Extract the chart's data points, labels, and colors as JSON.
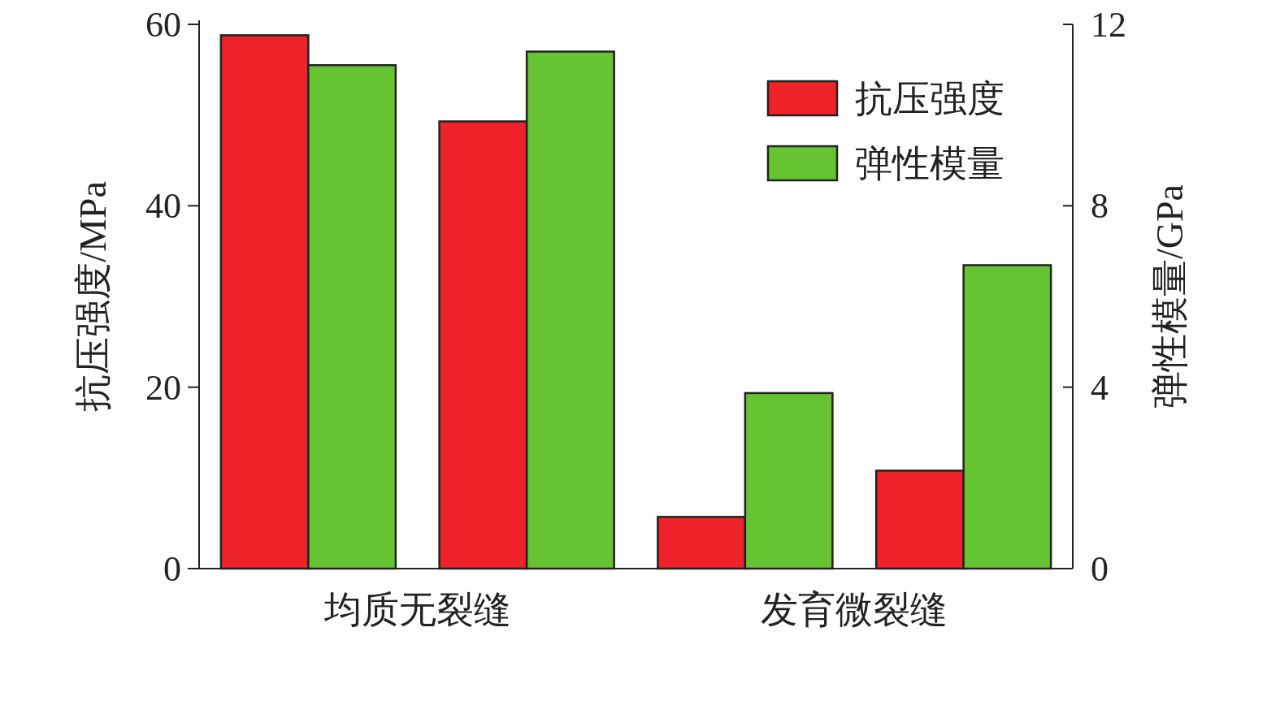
{
  "chart_data": {
    "type": "bar",
    "categories": [
      "均质无裂缝",
      "发育微裂缝"
    ],
    "series": [
      {
        "name": "抗压强度",
        "color": "#ee2329",
        "values": [
          58.8,
          5.7
        ]
      },
      {
        "name": "弹性模量",
        "color": "#66c332",
        "axis": "y2",
        "values": [
          11.1,
          3.87
        ]
      },
      {
        "color": "#ee2329",
        "values": [
          49.3,
          10.8
        ]
      },
      {
        "color": "#66c332",
        "axis": "y2",
        "values": [
          11.4,
          6.69
        ]
      }
    ],
    "ylabel": "抗压强度/MPa",
    "y2label": "弹性模量/GPa",
    "ylim": [
      0,
      60
    ],
    "yticks": [
      0,
      20,
      40,
      60
    ],
    "y2lim": [
      0,
      12
    ],
    "y2ticks": [
      0,
      4,
      8,
      12
    ],
    "legend": "top right",
    "grid": false
  }
}
